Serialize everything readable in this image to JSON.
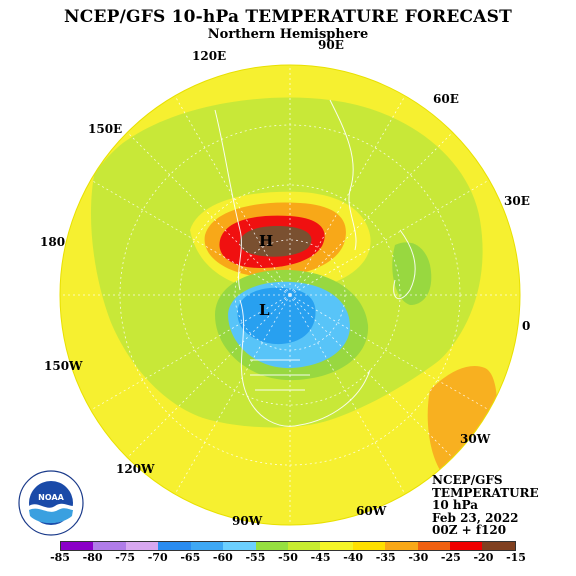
{
  "title": "NCEP/GFS 10-hPa TEMPERATURE FORECAST",
  "subtitle": "Northern Hemisphere",
  "longitude_labels": [
    "90E",
    "60E",
    "30E",
    "0",
    "30W",
    "60W",
    "90W",
    "120W",
    "150W",
    "180",
    "150E",
    "120E"
  ],
  "info": {
    "model": "NCEP/GFS",
    "variable": "TEMPERATURE",
    "level": "10 hPa",
    "date": "Feb 23, 2022",
    "run": "00Z + f120"
  },
  "markers": {
    "high": "H",
    "low": "L"
  },
  "colorbar": {
    "labels": [
      "-85",
      "-80",
      "-75",
      "-70",
      "-65",
      "-60",
      "-55",
      "-50",
      "-45",
      "-40",
      "-35",
      "-30",
      "-25",
      "-20",
      "-15"
    ],
    "colors": [
      "#8b00c8",
      "#b07ce8",
      "#d8a8f0",
      "#2a8cf0",
      "#3ea8f4",
      "#6cd0ff",
      "#96e040",
      "#c8ec30",
      "#f4f428",
      "#ffe000",
      "#f8a818",
      "#f06010",
      "#f00000",
      "#804020"
    ]
  },
  "colors": {
    "cold_core": "#28a0f0",
    "warm_core": "#7a5030",
    "background_field": "#f6f030",
    "ring": "#c8e838"
  }
}
